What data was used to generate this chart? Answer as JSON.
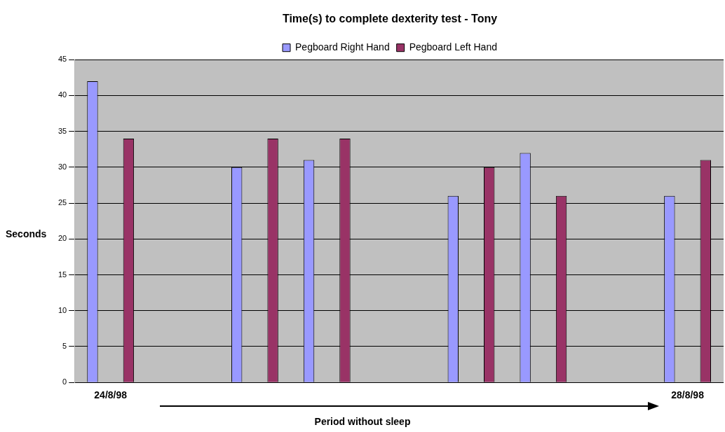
{
  "chart_data": {
    "type": "bar",
    "title": "Time(s) to complete dexterity test - Tony",
    "xlabel": "Period without sleep",
    "ylabel": "Seconds",
    "categories": [
      "24/8/98",
      null,
      null,
      null,
      null,
      null,
      null,
      null,
      "28/8/98"
    ],
    "series": [
      {
        "name": "Pegboard Right Hand",
        "color": "#9999ff",
        "values": [
          42,
          null,
          30,
          31,
          null,
          26,
          32,
          null,
          26
        ]
      },
      {
        "name": "Pegboard Left Hand",
        "color": "#993366",
        "values": [
          34,
          null,
          34,
          34,
          null,
          30,
          26,
          null,
          31
        ]
      }
    ],
    "ylim": [
      0,
      45
    ],
    "yticks": [
      0,
      5,
      10,
      15,
      20,
      25,
      30,
      35,
      40,
      45
    ],
    "grid": "y",
    "legend": "top"
  }
}
